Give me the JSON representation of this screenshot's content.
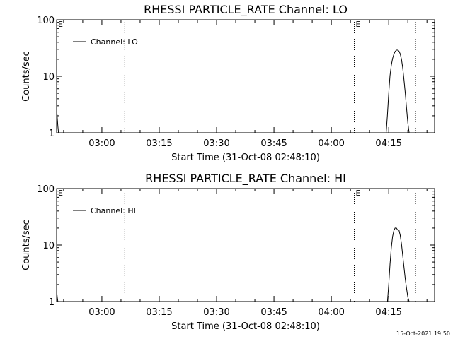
{
  "footer_timestamp": "15-Oct-2021 19:50",
  "chart_data": [
    {
      "type": "line",
      "title": "RHESSI PARTICLE_RATE Channel: LO",
      "xlabel": "Start Time (31-Oct-08 02:48:10)",
      "ylabel": "Counts/sec",
      "yscale": "log",
      "ylim": [
        1,
        100
      ],
      "xlim": [
        "02:48:10",
        "04:27:00"
      ],
      "ytick_labels": [
        "1",
        "10",
        "100"
      ],
      "xtick_labels": [
        "03:00",
        "03:15",
        "03:30",
        "03:45",
        "04:00",
        "04:15"
      ],
      "minor_xticks": [
        "02:50",
        "02:55",
        "03:05",
        "03:10",
        "03:20",
        "03:25",
        "03:35",
        "03:40",
        "03:50",
        "03:55",
        "04:05",
        "04:10",
        "04:20",
        "04:25"
      ],
      "legend": {
        "position": "top-left",
        "entries": [
          "Channel: LO"
        ]
      },
      "event_markers": [
        {
          "time": "03:06:00",
          "label": ""
        },
        {
          "time": "04:06:00",
          "label": "E"
        },
        {
          "time": "04:22:00",
          "label": ""
        }
      ],
      "corner_marker": "E",
      "series": [
        {
          "name": "Channel: LO",
          "segments": [
            {
              "x": [
                "02:48:10",
                "02:48:30",
                "02:48:40"
              ],
              "y": [
                2.7,
                1.3,
                1.0
              ]
            },
            {
              "x": [
                "04:14:20",
                "04:14:40",
                "04:15:00",
                "04:15:20",
                "04:15:40",
                "04:16:00",
                "04:16:20",
                "04:16:40",
                "04:17:00",
                "04:17:20",
                "04:17:40",
                "04:18:00",
                "04:18:20",
                "04:18:40",
                "04:19:00",
                "04:19:20",
                "04:19:40",
                "04:20:00",
                "04:20:20"
              ],
              "y": [
                1.0,
                2.1,
                5.0,
                10.2,
                15.5,
                20.5,
                24.5,
                27.5,
                29.0,
                29.0,
                28.0,
                25.0,
                20.0,
                14.0,
                8.5,
                5.0,
                2.7,
                1.5,
                1.0
              ]
            }
          ]
        }
      ]
    },
    {
      "type": "line",
      "title": "RHESSI PARTICLE_RATE Channel: HI",
      "xlabel": "Start Time (31-Oct-08 02:48:10)",
      "ylabel": "Counts/sec",
      "yscale": "log",
      "ylim": [
        1,
        100
      ],
      "xlim": [
        "02:48:10",
        "04:27:00"
      ],
      "ytick_labels": [
        "1",
        "10",
        "100"
      ],
      "xtick_labels": [
        "03:00",
        "03:15",
        "03:30",
        "03:45",
        "04:00",
        "04:15"
      ],
      "minor_xticks": [
        "02:50",
        "02:55",
        "03:05",
        "03:10",
        "03:20",
        "03:25",
        "03:35",
        "03:40",
        "03:50",
        "03:55",
        "04:05",
        "04:10",
        "04:20",
        "04:25"
      ],
      "legend": {
        "position": "top-left",
        "entries": [
          "Channel: HI"
        ]
      },
      "event_markers": [
        {
          "time": "03:06:00",
          "label": ""
        },
        {
          "time": "04:06:00",
          "label": "E"
        },
        {
          "time": "04:22:00",
          "label": ""
        }
      ],
      "corner_marker": "E",
      "series": [
        {
          "name": "Channel: HI",
          "segments": [
            {
              "x": [
                "02:48:10",
                "02:48:20",
                "02:48:30"
              ],
              "y": [
                1.6,
                1.2,
                1.0
              ]
            },
            {
              "x": [
                "04:14:40",
                "04:15:00",
                "04:15:20",
                "04:15:40",
                "04:16:00",
                "04:16:20",
                "04:16:40",
                "04:17:00",
                "04:17:20",
                "04:17:40",
                "04:18:00",
                "04:18:20",
                "04:18:40",
                "04:19:00",
                "04:19:20",
                "04:19:40",
                "04:20:00",
                "04:20:20"
              ],
              "y": [
                1.0,
                2.0,
                4.5,
                8.8,
                14.0,
                18.0,
                20.0,
                20.0,
                18.5,
                18.5,
                15.0,
                10.5,
                6.5,
                4.0,
                2.5,
                1.7,
                1.2,
                1.0
              ]
            }
          ]
        }
      ]
    }
  ]
}
